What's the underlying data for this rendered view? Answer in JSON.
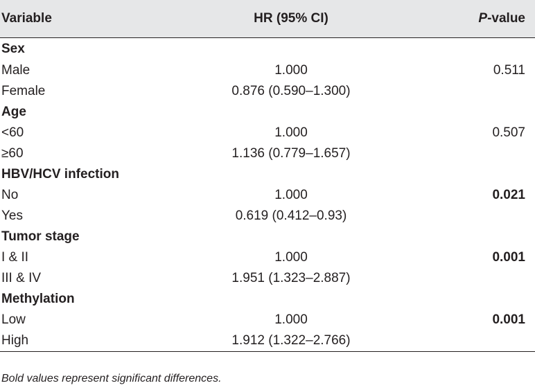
{
  "table": {
    "headers": {
      "variable": "Variable",
      "hr": "HR (95% CI)",
      "p_prefix": "P",
      "p_suffix": "-value"
    },
    "rows": [
      {
        "type": "group",
        "label": "Sex",
        "hr": "",
        "p": "",
        "bold_p": false
      },
      {
        "type": "item",
        "label": "Male",
        "hr": "1.000",
        "p": "0.511",
        "bold_p": false
      },
      {
        "type": "item",
        "label": "Female",
        "hr": "0.876 (0.590–1.300)",
        "p": "",
        "bold_p": false
      },
      {
        "type": "group",
        "label": "Age",
        "hr": "",
        "p": "",
        "bold_p": false
      },
      {
        "type": "item",
        "label": "<60",
        "hr": "1.000",
        "p": "0.507",
        "bold_p": false
      },
      {
        "type": "item",
        "label": "≥60",
        "hr": "1.136 (0.779–1.657)",
        "p": "",
        "bold_p": false
      },
      {
        "type": "group",
        "label": "HBV/HCV infection",
        "hr": "",
        "p": "",
        "bold_p": false
      },
      {
        "type": "item",
        "label": "No",
        "hr": "1.000",
        "p": "0.021",
        "bold_p": true
      },
      {
        "type": "item",
        "label": "Yes",
        "hr": "0.619 (0.412–0.93)",
        "p": "",
        "bold_p": false
      },
      {
        "type": "group",
        "label": "Tumor stage",
        "hr": "",
        "p": "",
        "bold_p": false
      },
      {
        "type": "item",
        "label": "I & II",
        "hr": "1.000",
        "p": "0.001",
        "bold_p": true
      },
      {
        "type": "item",
        "label": "III & IV",
        "hr": "1.951 (1.323–2.887)",
        "p": "",
        "bold_p": false
      },
      {
        "type": "group",
        "label": "Methylation",
        "hr": "",
        "p": "",
        "bold_p": false
      },
      {
        "type": "item",
        "label": "Low",
        "hr": "1.000",
        "p": "0.001",
        "bold_p": true
      },
      {
        "type": "item",
        "label": "High",
        "hr": "1.912 (1.322–2.766)",
        "p": "",
        "bold_p": false
      }
    ]
  },
  "footnote": "Bold values represent significant differences.",
  "colors": {
    "header_bg": "#e6e7e8",
    "text": "#231f20"
  }
}
